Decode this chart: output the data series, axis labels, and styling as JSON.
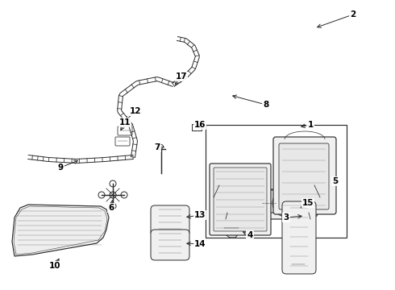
{
  "background_color": "#ffffff",
  "line_color": "#2a2a2a",
  "text_color": "#000000",
  "fig_w": 4.9,
  "fig_h": 3.6,
  "dpi": 100
}
